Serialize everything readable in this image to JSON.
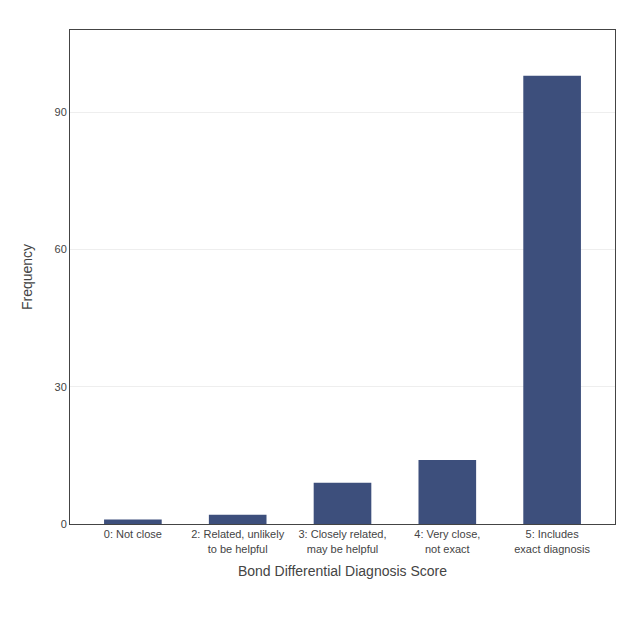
{
  "chart_data": {
    "type": "bar",
    "categories": [
      "0: Not close",
      "2: Related, unlikely\nto be helpful",
      "3: Closely related,\nmay be helpful",
      "4: Very close,\nnot exact",
      "5: Includes\nexact diagnosis"
    ],
    "values": [
      1,
      2,
      9,
      14,
      98
    ],
    "color": "#3d4f7c",
    "xlabel": "Bond Differential Diagnosis Score",
    "ylabel": "Frequency",
    "ylim": [
      0,
      108
    ],
    "yticks": [
      0,
      30,
      60,
      90
    ],
    "grid": true
  }
}
